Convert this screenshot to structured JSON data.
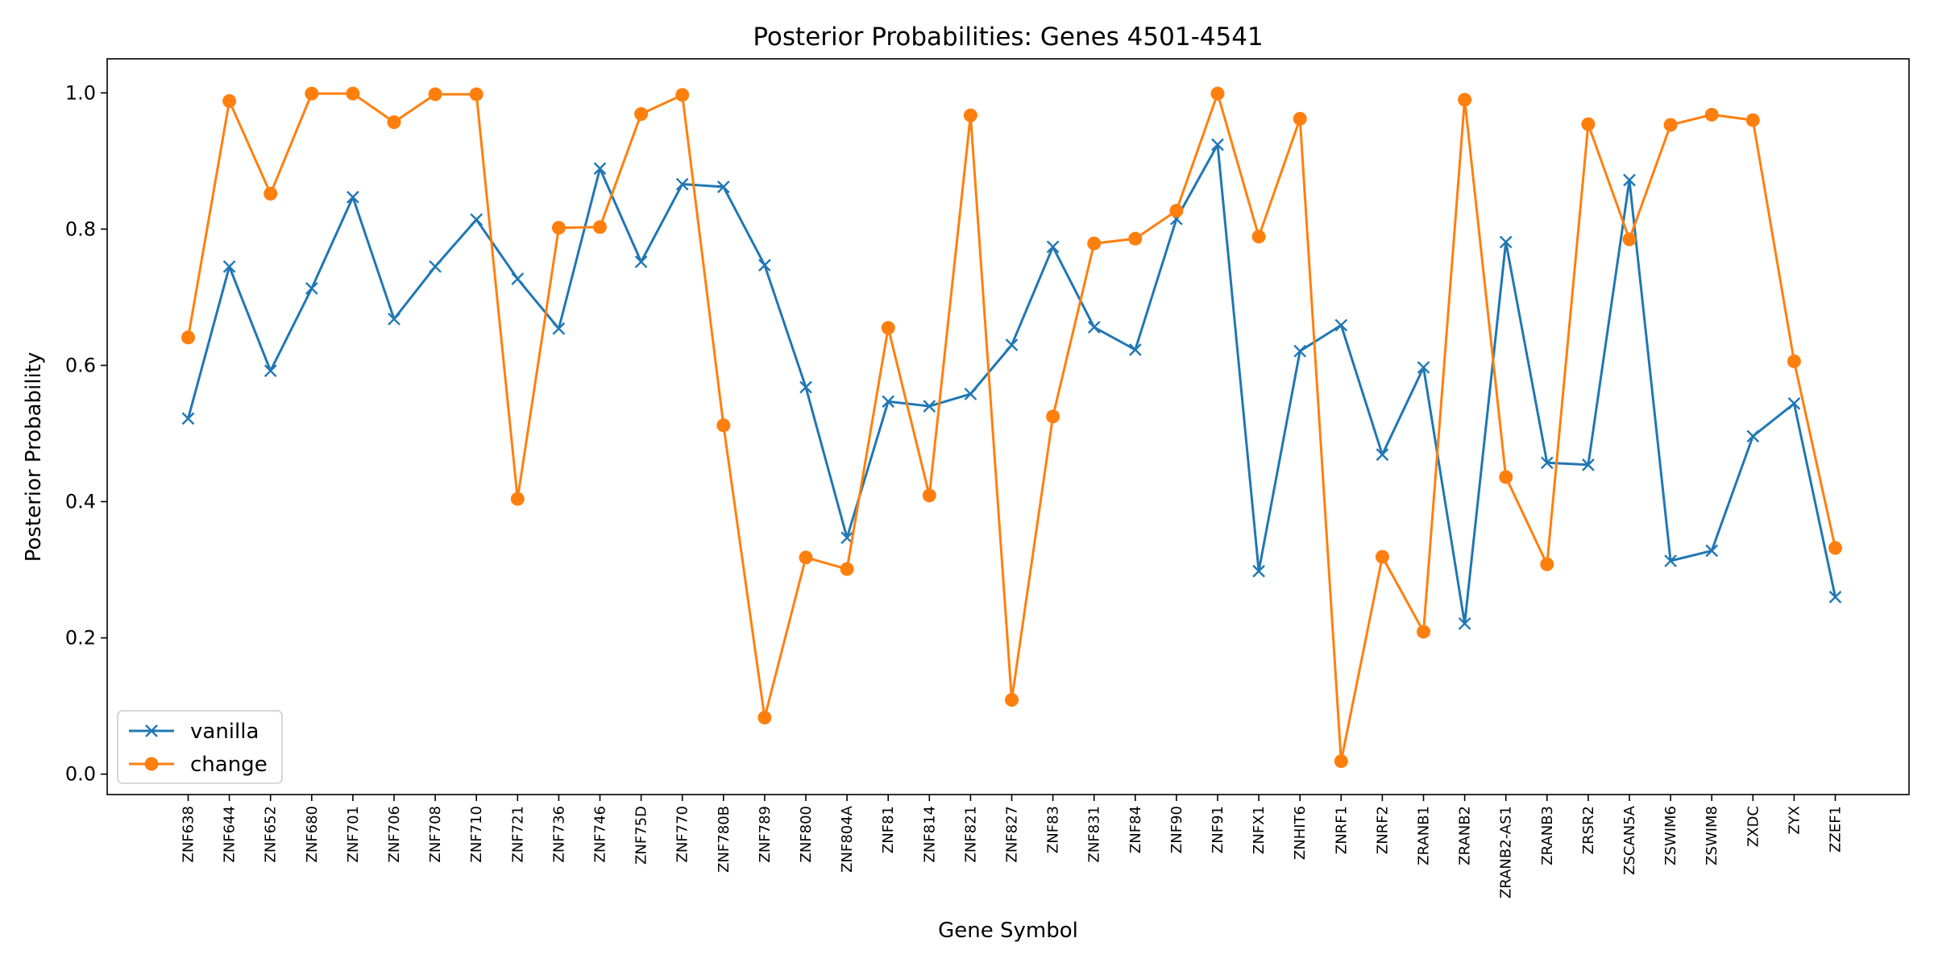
{
  "chart_data": {
    "type": "line",
    "title": "Posterior Probabilities: Genes 4501-4541",
    "xlabel": "Gene Symbol",
    "ylabel": "Posterior Probability",
    "ylim": [
      -0.03,
      1.05
    ],
    "yticks": [
      "0.0",
      "0.2",
      "0.4",
      "0.6",
      "0.8",
      "1.0"
    ],
    "grid": false,
    "legend_position": "lower-left",
    "categories": [
      "ZNF638",
      "ZNF644",
      "ZNF652",
      "ZNF680",
      "ZNF701",
      "ZNF706",
      "ZNF708",
      "ZNF710",
      "ZNF721",
      "ZNF736",
      "ZNF746",
      "ZNF75D",
      "ZNF770",
      "ZNF780B",
      "ZNF789",
      "ZNF800",
      "ZNF804A",
      "ZNF81",
      "ZNF814",
      "ZNF821",
      "ZNF827",
      "ZNF83",
      "ZNF831",
      "ZNF84",
      "ZNF90",
      "ZNF91",
      "ZNFX1",
      "ZNHIT6",
      "ZNRF1",
      "ZNRF2",
      "ZRANB1",
      "ZRANB2",
      "ZRANB2-AS1",
      "ZRANB3",
      "ZRSR2",
      "ZSCAN5A",
      "ZSWIM6",
      "ZSWIM8",
      "ZXDC",
      "ZYX",
      "ZZEF1"
    ],
    "series": [
      {
        "name": "vanilla",
        "color": "#1f77b4",
        "marker": "x",
        "values": [
          0.522,
          0.745,
          0.592,
          0.713,
          0.847,
          0.668,
          0.745,
          0.814,
          0.727,
          0.654,
          0.889,
          0.752,
          0.866,
          0.862,
          0.747,
          0.568,
          0.347,
          0.547,
          0.54,
          0.558,
          0.63,
          0.774,
          0.656,
          0.623,
          0.815,
          0.924,
          0.298,
          0.621,
          0.659,
          0.469,
          0.597,
          0.221,
          0.781,
          0.457,
          0.454,
          0.872,
          0.313,
          0.328,
          0.496,
          0.544,
          0.26
        ]
      },
      {
        "name": "change",
        "color": "#ff7f0e",
        "marker": "circle",
        "values": [
          0.641,
          0.988,
          0.852,
          0.999,
          0.999,
          0.957,
          0.998,
          0.998,
          0.404,
          0.802,
          0.803,
          0.969,
          0.997,
          0.512,
          0.083,
          0.318,
          0.301,
          0.655,
          0.409,
          0.967,
          0.109,
          0.525,
          0.779,
          0.786,
          0.827,
          0.999,
          0.789,
          0.962,
          0.019,
          0.319,
          0.209,
          0.99,
          0.436,
          0.308,
          0.954,
          0.785,
          0.953,
          0.968,
          0.96,
          0.606,
          0.332
        ]
      }
    ]
  }
}
